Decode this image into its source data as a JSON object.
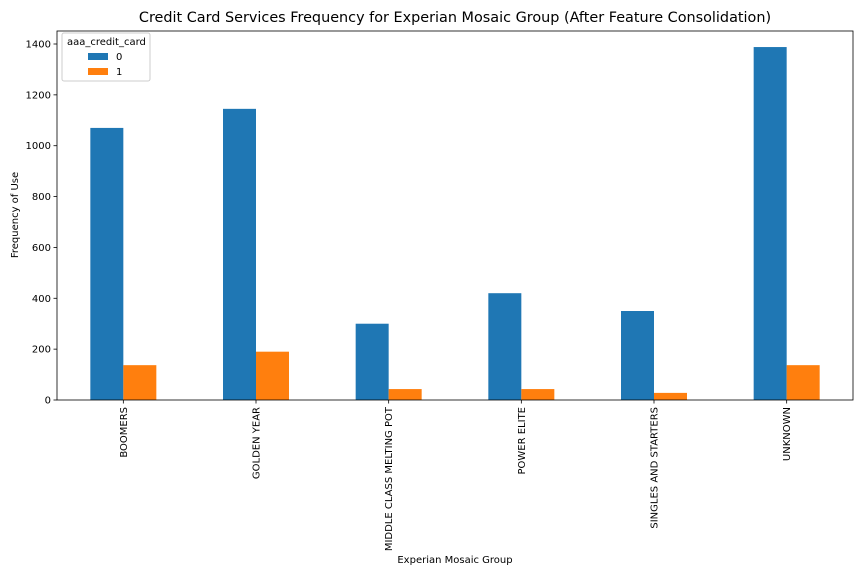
{
  "chart_data": {
    "type": "bar",
    "title": "Credit Card Services Frequency for Experian Mosaic Group (After Feature Consolidation)",
    "xlabel": "Experian Mosaic Group",
    "ylabel": "Frequency of Use",
    "categories": [
      "BOOMERS",
      "GOLDEN YEAR",
      "MIDDLE CLASS MELTING POT",
      "POWER ELITE",
      "SINGLES AND STARTERS",
      "UNKNOWN"
    ],
    "series": [
      {
        "name": "0",
        "color": "#1f77b4",
        "values": [
          1070,
          1145,
          300,
          420,
          350,
          1388
        ]
      },
      {
        "name": "1",
        "color": "#ff7f0e",
        "values": [
          137,
          190,
          43,
          43,
          28,
          137
        ]
      }
    ],
    "ylim": [
      0,
      1400
    ],
    "yticks": [
      0,
      200,
      400,
      600,
      800,
      1000,
      1200,
      1400
    ],
    "legend": {
      "title": "aaa_credit_card",
      "placement": "top-left"
    },
    "grid": false
  }
}
